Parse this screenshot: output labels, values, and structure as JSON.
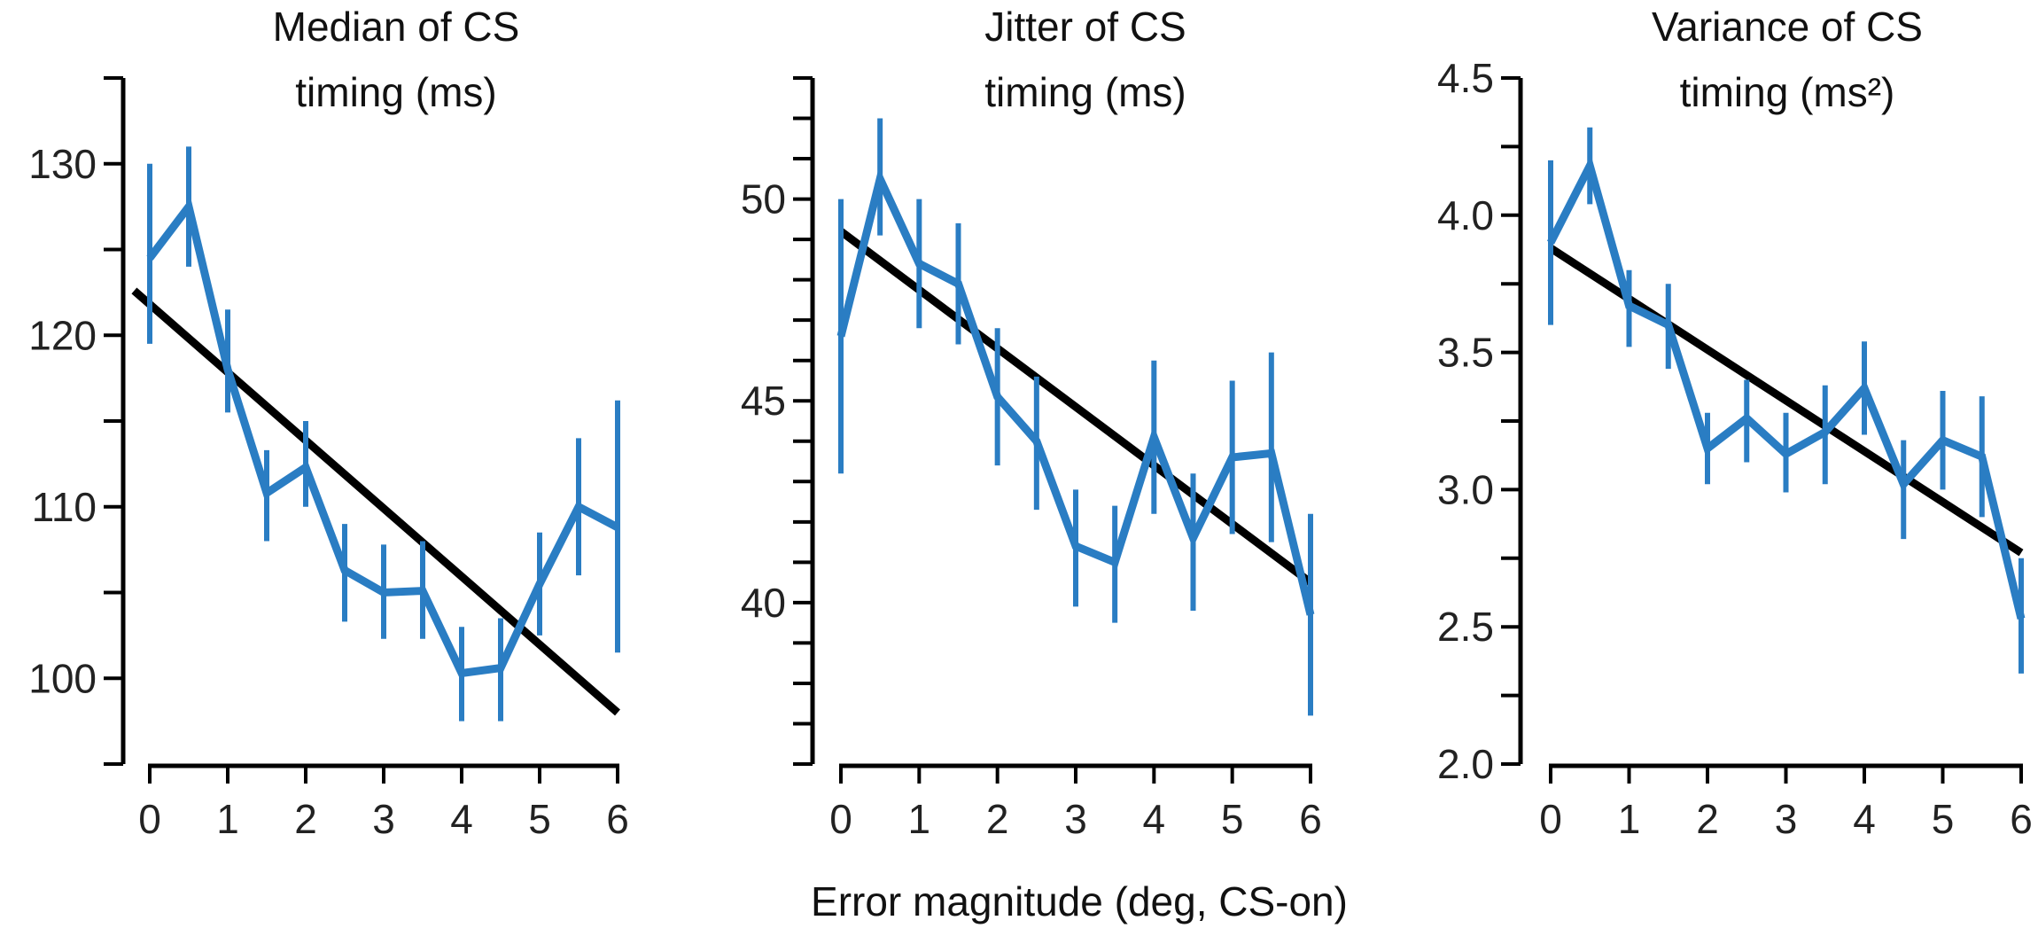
{
  "figure": {
    "shared_xlabel": "Error magnitude (deg, CS-on)"
  },
  "colors": {
    "data": "#2a7dc3",
    "fit": "#000000",
    "axis": "#000000"
  },
  "chart_data": [
    {
      "type": "line",
      "title": [
        "Median of CS",
        "timing (ms)"
      ],
      "xlabel": "Error magnitude (deg, CS-on)",
      "ylabel": "",
      "xlim": [
        0,
        6
      ],
      "ylim": [
        95,
        135
      ],
      "x_ticks": [
        0,
        1,
        2,
        3,
        4,
        5,
        6
      ],
      "x_tick_labels": [
        "0",
        "1",
        "2",
        "3",
        "4",
        "5",
        "6"
      ],
      "y_minor_step": 5,
      "y_ticks": [
        100,
        110,
        120,
        130
      ],
      "y_tick_labels": [
        "100",
        "110",
        "120",
        "130"
      ],
      "grid": false,
      "x": [
        0,
        0.5,
        1,
        1.5,
        2,
        2.5,
        3,
        3.5,
        4,
        4.5,
        5,
        5.5,
        6
      ],
      "series": [
        {
          "kind": "mean_with_error",
          "values": [
            124.5,
            127.5,
            118,
            110.8,
            112.3,
            106.3,
            105,
            105.1,
            100.3,
            100.6,
            105.5,
            110,
            108.8
          ],
          "err_low": [
            119.5,
            124,
            115.5,
            108,
            110,
            103.3,
            102.3,
            102.3,
            97.5,
            97.5,
            102.5,
            106,
            101.5
          ],
          "err_high": [
            130,
            131,
            121.5,
            113.3,
            115,
            109,
            107.8,
            108,
            103,
            103.5,
            108.5,
            114,
            116.2
          ]
        },
        {
          "kind": "linear_fit",
          "x": [
            -0.2,
            6
          ],
          "values": [
            122.6,
            98
          ]
        }
      ]
    },
    {
      "type": "line",
      "title": [
        "Jitter of CS",
        "timing (ms)"
      ],
      "xlabel": "Error magnitude (deg, CS-on)",
      "ylabel": "",
      "xlim": [
        0,
        6
      ],
      "ylim": [
        36,
        53
      ],
      "x_ticks": [
        0,
        1,
        2,
        3,
        4,
        5,
        6
      ],
      "x_tick_labels": [
        "0",
        "1",
        "2",
        "3",
        "4",
        "5",
        "6"
      ],
      "y_minor_step": 1,
      "y_ticks": [
        40,
        45,
        50
      ],
      "y_tick_labels": [
        "40",
        "45",
        "50"
      ],
      "grid": false,
      "x": [
        0,
        0.5,
        1,
        1.5,
        2,
        2.5,
        3,
        3.5,
        4,
        4.5,
        5,
        5.5,
        6
      ],
      "series": [
        {
          "kind": "mean_with_error",
          "values": [
            46.6,
            50.5,
            48.4,
            47.9,
            45.1,
            44,
            41.4,
            41,
            44.1,
            41.6,
            43.6,
            43.7,
            39.7
          ],
          "err_low": [
            43.2,
            49.1,
            46.8,
            46.4,
            43.4,
            42.3,
            39.9,
            39.5,
            42.2,
            39.8,
            41.7,
            41.5,
            37.2
          ],
          "err_high": [
            50,
            52,
            50,
            49.4,
            46.8,
            45.6,
            42.8,
            42.4,
            46,
            43.2,
            45.5,
            46.2,
            42.2
          ]
        },
        {
          "kind": "linear_fit",
          "x": [
            0,
            6
          ],
          "values": [
            49.2,
            40.5
          ]
        }
      ]
    },
    {
      "type": "line",
      "title": [
        "Variance of CS",
        "timing (ms²)"
      ],
      "xlabel": "Error magnitude (deg, CS-on)",
      "ylabel": "",
      "xlim": [
        0,
        6
      ],
      "ylim": [
        2.0,
        4.5
      ],
      "x_ticks": [
        0,
        1,
        2,
        3,
        4,
        5,
        6
      ],
      "x_tick_labels": [
        "0",
        "1",
        "2",
        "3",
        "4",
        "5",
        "6"
      ],
      "y_minor_step": 0.25,
      "y_ticks": [
        2.0,
        2.5,
        3.0,
        3.5,
        4.0,
        4.5
      ],
      "y_tick_labels": [
        "2.0",
        "2.5",
        "3.0",
        "3.5",
        "4.0",
        "4.5"
      ],
      "grid": false,
      "x": [
        0,
        0.5,
        1,
        1.5,
        2,
        2.5,
        3,
        3.5,
        4,
        4.5,
        5,
        5.5,
        6
      ],
      "series": [
        {
          "kind": "mean_with_error",
          "values": [
            3.9,
            4.18,
            3.67,
            3.6,
            3.15,
            3.26,
            3.13,
            3.21,
            3.37,
            3.02,
            3.18,
            3.12,
            2.53
          ],
          "err_low": [
            3.6,
            4.04,
            3.52,
            3.44,
            3.02,
            3.1,
            2.99,
            3.02,
            3.2,
            2.82,
            3.0,
            2.9,
            2.33
          ],
          "err_high": [
            4.2,
            4.32,
            3.8,
            3.75,
            3.28,
            3.4,
            3.28,
            3.38,
            3.54,
            3.18,
            3.36,
            3.34,
            2.75
          ]
        },
        {
          "kind": "linear_fit",
          "x": [
            0,
            6
          ],
          "values": [
            3.88,
            2.77
          ]
        }
      ]
    }
  ]
}
